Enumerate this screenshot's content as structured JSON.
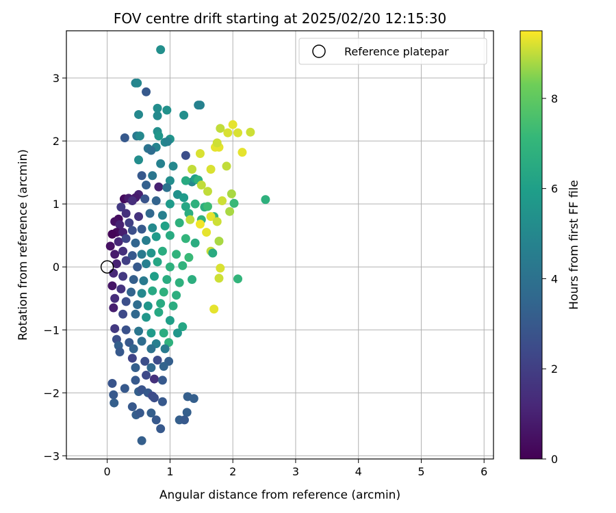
{
  "chart_data": {
    "type": "scatter",
    "title": "FOV centre drift starting at 2025/02/20 12:15:30",
    "xlabel": "Angular distance from reference (arcmin)",
    "ylabel": "Rotation from reference (arcmin)",
    "xlim": [
      -0.65,
      6.15
    ],
    "ylim": [
      -3.05,
      3.75
    ],
    "x_ticks": [
      0,
      1,
      2,
      3,
      4,
      5,
      6
    ],
    "y_ticks": [
      -3,
      -2,
      -1,
      0,
      1,
      2,
      3
    ],
    "grid": true,
    "legend": {
      "placement": "top-right",
      "entries": [
        "Reference platepar"
      ]
    },
    "reference_point": {
      "x": 0,
      "y": 0,
      "label": "Reference platepar"
    },
    "colorbar": {
      "label": "Hours from first FF file",
      "range": [
        0,
        9.5
      ],
      "ticks": [
        0,
        2,
        4,
        6,
        8
      ],
      "colormap": "viridis"
    },
    "points": [
      [
        0.85,
        3.45,
        5.3
      ],
      [
        0.45,
        2.92,
        4.8
      ],
      [
        0.48,
        2.92,
        4.9
      ],
      [
        0.62,
        2.78,
        3.0
      ],
      [
        1.45,
        2.57,
        4.7
      ],
      [
        1.48,
        2.57,
        4.7
      ],
      [
        0.8,
        2.52,
        5.2
      ],
      [
        0.95,
        2.49,
        5.4
      ],
      [
        0.5,
        2.42,
        5.0
      ],
      [
        0.8,
        2.4,
        5.1
      ],
      [
        1.22,
        2.41,
        5.3
      ],
      [
        0.8,
        2.15,
        5.3
      ],
      [
        0.82,
        2.08,
        5.6
      ],
      [
        0.47,
        2.08,
        4.3
      ],
      [
        0.52,
        2.08,
        5.0
      ],
      [
        0.28,
        2.05,
        3.0
      ],
      [
        1.0,
        2.03,
        5.5
      ],
      [
        0.92,
        1.98,
        5.0
      ],
      [
        0.96,
        1.99,
        4.7
      ],
      [
        0.78,
        1.9,
        4.8
      ],
      [
        0.65,
        1.88,
        4.1
      ],
      [
        0.7,
        1.85,
        3.8
      ],
      [
        1.25,
        1.77,
        2.6
      ],
      [
        0.5,
        1.7,
        5.2
      ],
      [
        0.85,
        1.64,
        4.7
      ],
      [
        1.05,
        1.6,
        5.0
      ],
      [
        0.55,
        1.45,
        3.0
      ],
      [
        0.72,
        1.45,
        4.2
      ],
      [
        1.35,
        1.35,
        5.0
      ],
      [
        1.4,
        1.4,
        6.0
      ],
      [
        1.45,
        1.38,
        6.8
      ],
      [
        1.25,
        1.37,
        6.5
      ],
      [
        0.62,
        1.3,
        3.3
      ],
      [
        1.0,
        1.37,
        5.2
      ],
      [
        0.82,
        1.27,
        1.0
      ],
      [
        0.95,
        1.26,
        4.0
      ],
      [
        0.5,
        1.15,
        1.0
      ],
      [
        0.45,
        1.1,
        0.8
      ],
      [
        0.27,
        1.08,
        0.3
      ],
      [
        0.34,
        1.09,
        0.8
      ],
      [
        0.4,
        1.05,
        1.4
      ],
      [
        0.22,
        0.95,
        1.8
      ],
      [
        1.12,
        1.15,
        5.4
      ],
      [
        1.22,
        1.1,
        5.8
      ],
      [
        0.6,
        1.08,
        2.8
      ],
      [
        0.78,
        1.05,
        3.4
      ],
      [
        1.0,
        1.0,
        5.8
      ],
      [
        1.25,
        0.96,
        6.3
      ],
      [
        0.3,
        0.85,
        1.5
      ],
      [
        0.18,
        0.76,
        0.4
      ],
      [
        0.12,
        0.72,
        0.5
      ],
      [
        0.2,
        0.67,
        1.0
      ],
      [
        0.35,
        0.7,
        2.0
      ],
      [
        0.5,
        0.8,
        1.6
      ],
      [
        0.68,
        0.85,
        3.6
      ],
      [
        0.88,
        0.82,
        4.6
      ],
      [
        1.3,
        0.85,
        6.6
      ],
      [
        1.4,
        1.0,
        6.8
      ],
      [
        1.55,
        0.95,
        6.7
      ],
      [
        1.6,
        0.96,
        7.3
      ],
      [
        0.15,
        0.55,
        0.3
      ],
      [
        0.08,
        0.52,
        0.1
      ],
      [
        0.25,
        0.55,
        0.9
      ],
      [
        0.4,
        0.58,
        2.6
      ],
      [
        0.55,
        0.6,
        3.0
      ],
      [
        0.72,
        0.62,
        5.1
      ],
      [
        0.92,
        0.65,
        6.1
      ],
      [
        1.15,
        0.7,
        6.8
      ],
      [
        1.5,
        0.75,
        6.9
      ],
      [
        1.7,
        0.8,
        7.0
      ],
      [
        0.05,
        0.33,
        0.5
      ],
      [
        0.18,
        0.4,
        1.2
      ],
      [
        0.3,
        0.45,
        2.2
      ],
      [
        0.45,
        0.38,
        3.5
      ],
      [
        0.62,
        0.42,
        4.5
      ],
      [
        0.78,
        0.48,
        5.8
      ],
      [
        1.0,
        0.5,
        6.5
      ],
      [
        1.25,
        0.45,
        7.0
      ],
      [
        1.4,
        0.38,
        6.6
      ],
      [
        0.12,
        0.2,
        0.8
      ],
      [
        0.25,
        0.25,
        1.5
      ],
      [
        0.4,
        0.18,
        3.0
      ],
      [
        0.55,
        0.2,
        4.4
      ],
      [
        0.7,
        0.22,
        5.5
      ],
      [
        0.88,
        0.25,
        6.6
      ],
      [
        1.1,
        0.2,
        6.9
      ],
      [
        1.3,
        0.15,
        7.2
      ],
      [
        0.15,
        0.05,
        1.0
      ],
      [
        0.3,
        0.1,
        2.0
      ],
      [
        0.48,
        0.0,
        3.0
      ],
      [
        0.62,
        0.05,
        4.6
      ],
      [
        0.8,
        0.08,
        6.3
      ],
      [
        1.0,
        0.0,
        6.8
      ],
      [
        1.2,
        0.02,
        6.9
      ],
      [
        0.1,
        -0.1,
        1.2
      ],
      [
        0.25,
        -0.15,
        1.8
      ],
      [
        0.42,
        -0.2,
        3.2
      ],
      [
        0.58,
        -0.22,
        4.4
      ],
      [
        0.75,
        -0.15,
        6.0
      ],
      [
        0.95,
        -0.2,
        6.6
      ],
      [
        1.15,
        -0.25,
        6.8
      ],
      [
        1.35,
        -0.2,
        6.7
      ],
      [
        0.08,
        -0.3,
        0.6
      ],
      [
        0.22,
        -0.35,
        1.6
      ],
      [
        0.38,
        -0.4,
        3.4
      ],
      [
        0.55,
        -0.42,
        5.0
      ],
      [
        0.72,
        -0.38,
        6.4
      ],
      [
        0.9,
        -0.4,
        6.8
      ],
      [
        1.1,
        -0.45,
        6.7
      ],
      [
        0.12,
        -0.5,
        1.4
      ],
      [
        0.3,
        -0.55,
        2.6
      ],
      [
        0.48,
        -0.6,
        3.8
      ],
      [
        0.65,
        -0.62,
        5.6
      ],
      [
        0.85,
        -0.58,
        6.5
      ],
      [
        1.05,
        -0.62,
        6.6
      ],
      [
        0.1,
        -0.65,
        0.9
      ],
      [
        0.25,
        -0.75,
        2.4
      ],
      [
        0.45,
        -0.75,
        3.6
      ],
      [
        0.62,
        -0.8,
        5.6
      ],
      [
        0.82,
        -0.72,
        6.4
      ],
      [
        1.0,
        -0.85,
        6.0
      ],
      [
        1.2,
        -0.95,
        6.3
      ],
      [
        0.12,
        -0.98,
        1.8
      ],
      [
        0.3,
        -1.0,
        2.7
      ],
      [
        0.5,
        -1.02,
        4.2
      ],
      [
        0.7,
        -1.05,
        5.8
      ],
      [
        0.9,
        -1.05,
        6.6
      ],
      [
        1.12,
        -1.05,
        5.6
      ],
      [
        0.15,
        -1.15,
        2.6
      ],
      [
        0.35,
        -1.2,
        3.0
      ],
      [
        0.55,
        -1.18,
        3.8
      ],
      [
        0.78,
        -1.22,
        4.6
      ],
      [
        0.98,
        -1.2,
        6.8
      ],
      [
        0.18,
        -1.25,
        3.2
      ],
      [
        0.42,
        -1.3,
        3.4
      ],
      [
        0.7,
        -1.3,
        4.0
      ],
      [
        0.92,
        -1.3,
        4.4
      ],
      [
        0.2,
        -1.35,
        3.0
      ],
      [
        0.4,
        -1.45,
        2.2
      ],
      [
        0.6,
        -1.5,
        2.6
      ],
      [
        0.8,
        -1.48,
        2.5
      ],
      [
        0.98,
        -1.5,
        3.2
      ],
      [
        0.45,
        -1.6,
        3.2
      ],
      [
        0.7,
        -1.6,
        3.6
      ],
      [
        0.9,
        -1.58,
        3.4
      ],
      [
        0.45,
        -1.8,
        3.0
      ],
      [
        0.62,
        -1.72,
        2.4
      ],
      [
        0.75,
        -1.78,
        1.5
      ],
      [
        0.88,
        -1.8,
        3.0
      ],
      [
        0.08,
        -1.85,
        2.8
      ],
      [
        0.28,
        -1.93,
        3.0
      ],
      [
        0.5,
        -1.98,
        3.2
      ],
      [
        0.55,
        -1.95,
        2.8
      ],
      [
        0.65,
        -2.0,
        3.0
      ],
      [
        0.72,
        -2.05,
        2.4
      ],
      [
        0.75,
        -2.08,
        2.6
      ],
      [
        1.28,
        -2.06,
        3.2
      ],
      [
        1.38,
        -2.09,
        3.2
      ],
      [
        0.1,
        -2.03,
        3.0
      ],
      [
        0.11,
        -2.16,
        3.2
      ],
      [
        0.4,
        -2.22,
        3.0
      ],
      [
        0.46,
        -2.35,
        3.2
      ],
      [
        0.52,
        -2.32,
        3.0
      ],
      [
        0.7,
        -2.32,
        3.2
      ],
      [
        0.88,
        -2.14,
        3.0
      ],
      [
        1.27,
        -2.31,
        3.2
      ],
      [
        0.78,
        -2.43,
        3.0
      ],
      [
        1.15,
        -2.43,
        3.2
      ],
      [
        1.23,
        -2.43,
        3.0
      ],
      [
        0.85,
        -2.57,
        3.0
      ],
      [
        0.55,
        -2.76,
        3.2
      ],
      [
        1.65,
        1.55,
        9.2
      ],
      [
        1.9,
        1.6,
        9.0
      ],
      [
        1.72,
        1.9,
        9.3
      ],
      [
        1.78,
        1.9,
        9.3
      ],
      [
        1.75,
        1.97,
        9.1
      ],
      [
        1.8,
        2.2,
        9.0
      ],
      [
        1.92,
        2.13,
        9.2
      ],
      [
        2.0,
        2.26,
        9.3
      ],
      [
        2.08,
        2.13,
        9.2
      ],
      [
        2.28,
        2.14,
        9.1
      ],
      [
        2.15,
        1.82,
        9.3
      ],
      [
        1.48,
        1.8,
        9.2
      ],
      [
        1.35,
        1.55,
        9.0
      ],
      [
        1.5,
        1.3,
        9.0
      ],
      [
        1.6,
        1.2,
        9.0
      ],
      [
        1.98,
        1.16,
        8.8
      ],
      [
        1.83,
        1.05,
        9.1
      ],
      [
        1.95,
        0.88,
        8.8
      ],
      [
        1.65,
        0.8,
        9.3
      ],
      [
        1.75,
        0.72,
        9.1
      ],
      [
        1.48,
        0.68,
        9.4
      ],
      [
        1.58,
        0.55,
        9.3
      ],
      [
        1.78,
        0.41,
        8.8
      ],
      [
        1.65,
        0.25,
        9.0
      ],
      [
        1.8,
        -0.02,
        9.2
      ],
      [
        1.78,
        -0.18,
        9.1
      ],
      [
        1.7,
        -0.67,
        9.3
      ],
      [
        1.32,
        0.75,
        9.0
      ],
      [
        2.52,
        1.07,
        6.8
      ],
      [
        2.08,
        -0.19,
        7.0
      ],
      [
        2.02,
        1.01,
        7.2
      ],
      [
        1.68,
        0.22,
        6.5
      ]
    ]
  }
}
